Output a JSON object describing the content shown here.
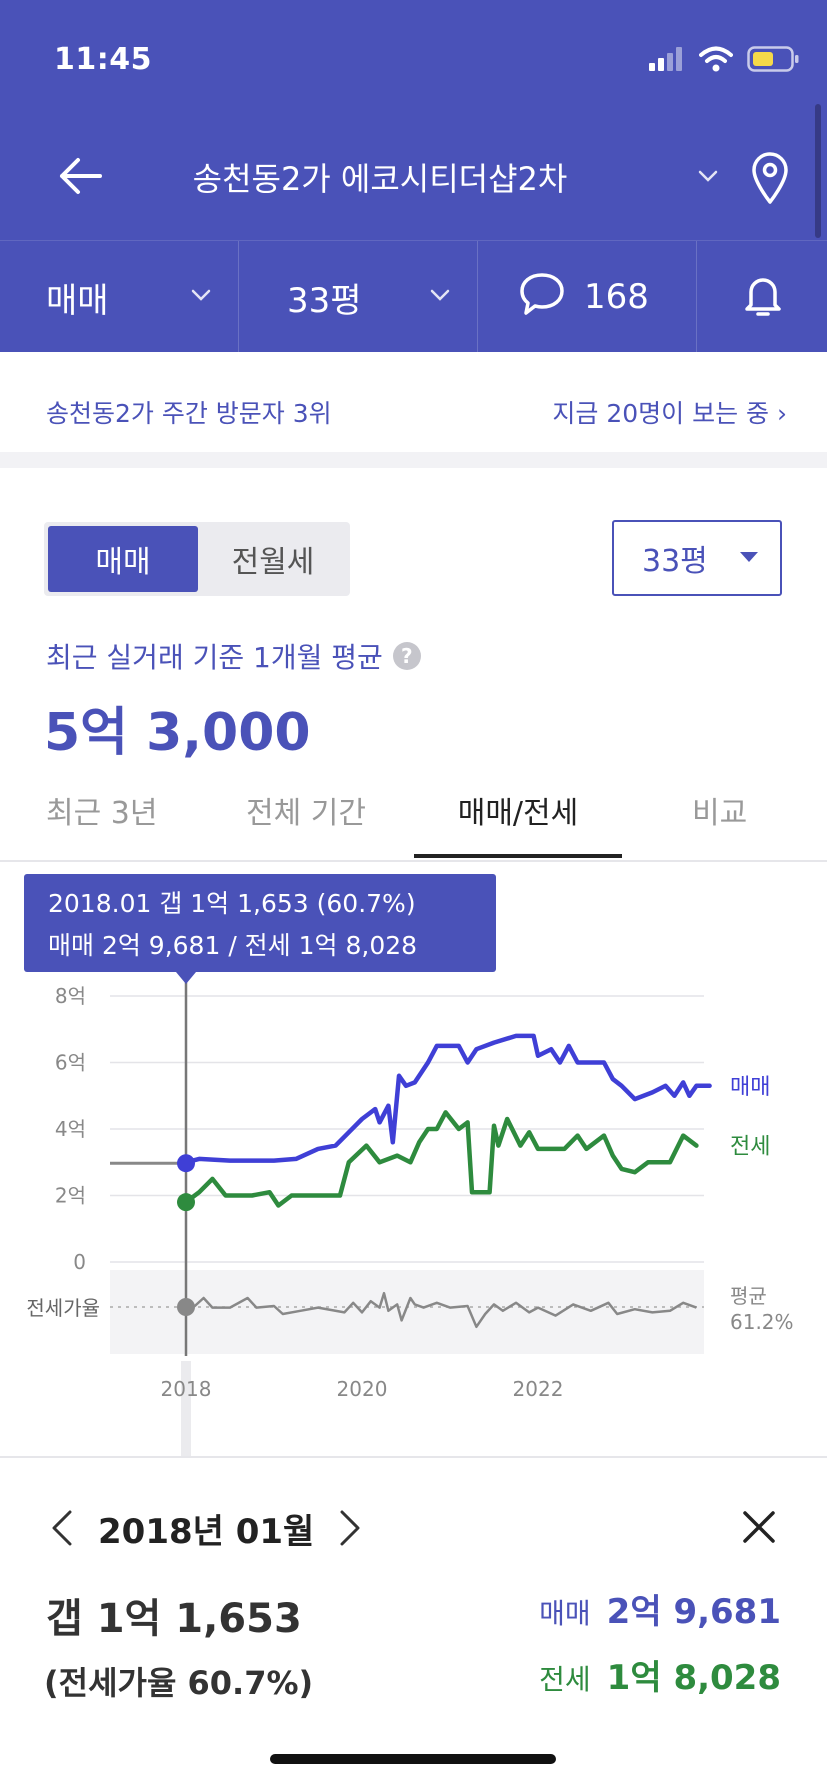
{
  "status": {
    "time": "11:45"
  },
  "nav": {
    "title": "송천동2가 에코시티더샵2차"
  },
  "filters": {
    "trade": "매매",
    "size": "33평",
    "comments": "168"
  },
  "visitors": {
    "left": "송천동2가 주간 방문자 3위",
    "right": "지금 20명이 보는 중 ›"
  },
  "segment": {
    "on": "매매",
    "off": "전월세"
  },
  "size_select": {
    "value": "33평"
  },
  "avg": {
    "label": "최근 실거래 기준 1개월 평균",
    "help": "?",
    "value": "5억 3,000"
  },
  "tabs": [
    "최근 3년",
    "전체 기간",
    "매매/전세",
    "비교"
  ],
  "tooltip": {
    "line1": "2018.01  갭 1억 1,653 (60.7%)",
    "line2": "매매 2억 9,681 / 전세 1억 8,028"
  },
  "chart_data": {
    "type": "line",
    "y_ticks": [
      "8억",
      "6억",
      "4억",
      "2억",
      "0"
    ],
    "ylim": [
      0,
      8
    ],
    "x_ticks": [
      {
        "x": 2018.0,
        "label": "2018"
      },
      {
        "x": 2020.0,
        "label": "2020"
      },
      {
        "x": 2022.0,
        "label": "2022"
      }
    ],
    "series": [
      {
        "name": "매매",
        "color": "#3f3fd6",
        "points": [
          [
            2018.0,
            3.0
          ],
          [
            2018.15,
            3.1
          ],
          [
            2018.5,
            3.05
          ],
          [
            2019.0,
            3.05
          ],
          [
            2019.25,
            3.1
          ],
          [
            2019.5,
            3.4
          ],
          [
            2019.7,
            3.5
          ],
          [
            2019.85,
            3.9
          ],
          [
            2020.0,
            4.3
          ],
          [
            2020.15,
            4.6
          ],
          [
            2020.2,
            4.2
          ],
          [
            2020.3,
            4.7
          ],
          [
            2020.35,
            3.6
          ],
          [
            2020.42,
            5.6
          ],
          [
            2020.5,
            5.3
          ],
          [
            2020.6,
            5.4
          ],
          [
            2020.75,
            6.0
          ],
          [
            2020.85,
            6.5
          ],
          [
            2021.1,
            6.5
          ],
          [
            2021.2,
            6.0
          ],
          [
            2021.3,
            6.4
          ],
          [
            2021.5,
            6.6
          ],
          [
            2021.75,
            6.8
          ],
          [
            2021.95,
            6.8
          ],
          [
            2022.0,
            6.2
          ],
          [
            2022.15,
            6.4
          ],
          [
            2022.25,
            6.0
          ],
          [
            2022.35,
            6.5
          ],
          [
            2022.45,
            6.0
          ],
          [
            2022.75,
            6.0
          ],
          [
            2022.85,
            5.5
          ],
          [
            2022.95,
            5.3
          ],
          [
            2023.1,
            4.9
          ],
          [
            2023.3,
            5.1
          ],
          [
            2023.45,
            5.3
          ],
          [
            2023.55,
            5.0
          ],
          [
            2023.65,
            5.4
          ],
          [
            2023.72,
            5.0
          ],
          [
            2023.8,
            5.3
          ],
          [
            2023.95,
            5.3
          ]
        ]
      },
      {
        "name": "전세",
        "color": "#2e8b3e",
        "points": [
          [
            2018.0,
            1.8
          ],
          [
            2018.15,
            2.1
          ],
          [
            2018.3,
            2.5
          ],
          [
            2018.45,
            2.0
          ],
          [
            2018.75,
            2.0
          ],
          [
            2018.95,
            2.1
          ],
          [
            2019.05,
            1.7
          ],
          [
            2019.2,
            2.0
          ],
          [
            2019.75,
            2.0
          ],
          [
            2019.85,
            3.0
          ],
          [
            2020.05,
            3.5
          ],
          [
            2020.2,
            3.0
          ],
          [
            2020.4,
            3.2
          ],
          [
            2020.55,
            3.0
          ],
          [
            2020.65,
            3.6
          ],
          [
            2020.75,
            4.0
          ],
          [
            2020.85,
            4.0
          ],
          [
            2020.95,
            4.5
          ],
          [
            2021.1,
            4.0
          ],
          [
            2021.2,
            4.2
          ],
          [
            2021.25,
            2.1
          ],
          [
            2021.45,
            2.1
          ],
          [
            2021.5,
            4.1
          ],
          [
            2021.55,
            3.5
          ],
          [
            2021.65,
            4.3
          ],
          [
            2021.8,
            3.5
          ],
          [
            2021.9,
            3.9
          ],
          [
            2022.0,
            3.4
          ],
          [
            2022.3,
            3.4
          ],
          [
            2022.45,
            3.8
          ],
          [
            2022.55,
            3.4
          ],
          [
            2022.75,
            3.8
          ],
          [
            2022.85,
            3.2
          ],
          [
            2022.95,
            2.8
          ],
          [
            2023.1,
            2.7
          ],
          [
            2023.25,
            3.0
          ],
          [
            2023.5,
            3.0
          ],
          [
            2023.65,
            3.8
          ],
          [
            2023.8,
            3.5
          ]
        ]
      }
    ],
    "pre_series_level": 2.97,
    "ratio_series": {
      "name": "전세가율",
      "avg_label": "평균",
      "avg_value": "61.2%",
      "points": [
        [
          2018.0,
          60.7
        ],
        [
          2018.1,
          61.5
        ],
        [
          2018.2,
          64.0
        ],
        [
          2018.3,
          61.0
        ],
        [
          2018.5,
          61.0
        ],
        [
          2018.7,
          64.0
        ],
        [
          2018.8,
          61.0
        ],
        [
          2019.0,
          61.5
        ],
        [
          2019.1,
          59.0
        ],
        [
          2019.3,
          60.0
        ],
        [
          2019.5,
          61.0
        ],
        [
          2019.8,
          59.5
        ],
        [
          2019.9,
          62.5
        ],
        [
          2020.0,
          59.5
        ],
        [
          2020.1,
          63.0
        ],
        [
          2020.2,
          61.0
        ],
        [
          2020.25,
          65.5
        ],
        [
          2020.3,
          60.0
        ],
        [
          2020.4,
          62.0
        ],
        [
          2020.45,
          57.0
        ],
        [
          2020.55,
          64.0
        ],
        [
          2020.6,
          62.0
        ],
        [
          2020.7,
          61.0
        ],
        [
          2020.85,
          62.5
        ],
        [
          2021.0,
          61.0
        ],
        [
          2021.2,
          61.5
        ],
        [
          2021.3,
          55.0
        ],
        [
          2021.4,
          59.0
        ],
        [
          2021.5,
          62.0
        ],
        [
          2021.6,
          60.0
        ],
        [
          2021.75,
          62.5
        ],
        [
          2021.9,
          59.5
        ],
        [
          2022.0,
          61.0
        ],
        [
          2022.2,
          58.5
        ],
        [
          2022.4,
          62.0
        ],
        [
          2022.6,
          60.0
        ],
        [
          2022.8,
          62.5
        ],
        [
          2022.9,
          59.0
        ],
        [
          2023.1,
          60.5
        ],
        [
          2023.3,
          59.5
        ],
        [
          2023.5,
          60.0
        ],
        [
          2023.65,
          62.5
        ],
        [
          2023.8,
          61.0
        ]
      ]
    },
    "selected": {
      "x": 2018.0,
      "trade": 2.97,
      "jeonse": 1.8
    }
  },
  "detail": {
    "month": "2018년 01월",
    "gap": "갭 1억 1,653",
    "rate": "(전세가율 60.7%)",
    "trade_label": "매매",
    "trade_value": "2억 9,681",
    "jeonse_label": "전세",
    "jeonse_value": "1억 8,028"
  },
  "colors": {
    "primary": "#4a52b8",
    "trade": "#3f3fd6",
    "jeonse": "#2e8b3e"
  }
}
